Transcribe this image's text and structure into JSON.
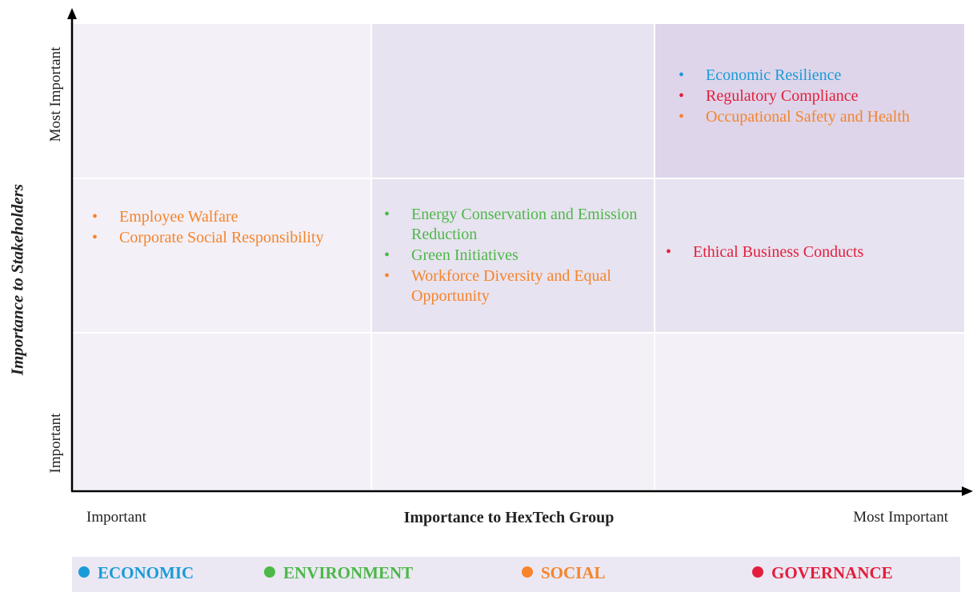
{
  "matrix": {
    "y_axis": {
      "title": "Importance to Stakeholders",
      "low": "Important",
      "high": "Most Important"
    },
    "x_axis": {
      "title": "Importance to HexTech Group",
      "low": "Important",
      "high": "Most Important"
    },
    "cells": [
      {
        "row": "top",
        "col": "right",
        "items": [
          {
            "text": "Economic Resilience",
            "color": "#1a9bd7"
          },
          {
            "text": "Regulatory Compliance",
            "color": "#e31e3c"
          },
          {
            "text": "Occupational Safety and Health",
            "color": "#f5842b"
          }
        ]
      },
      {
        "row": "middle",
        "col": "left",
        "items": [
          {
            "text": "Employee Walfare",
            "color": "#f5842b"
          },
          {
            "text": "Corporate Social Responsibility",
            "color": "#f5842b"
          }
        ]
      },
      {
        "row": "middle",
        "col": "center",
        "items": [
          {
            "text": "Energy Conservation and Emission Reduction",
            "color": "#4cb848"
          },
          {
            "text": "Green Initiatives",
            "color": "#4cb848"
          },
          {
            "text": "Workforce Diversity and Equal Opportunity",
            "color": "#f5842b"
          }
        ]
      },
      {
        "row": "middle",
        "col": "right",
        "items": [
          {
            "text": "Ethical Business Conducts",
            "color": "#e31e3c"
          }
        ]
      }
    ],
    "legend": [
      {
        "name": "ECONOMIC",
        "color": "#1a9bd7"
      },
      {
        "name": "ENVIRONMENT",
        "color": "#4cb848"
      },
      {
        "name": "SOCIAL",
        "color": "#f5842b"
      },
      {
        "name": "GOVERNANCE",
        "color": "#e31e3c"
      }
    ]
  }
}
